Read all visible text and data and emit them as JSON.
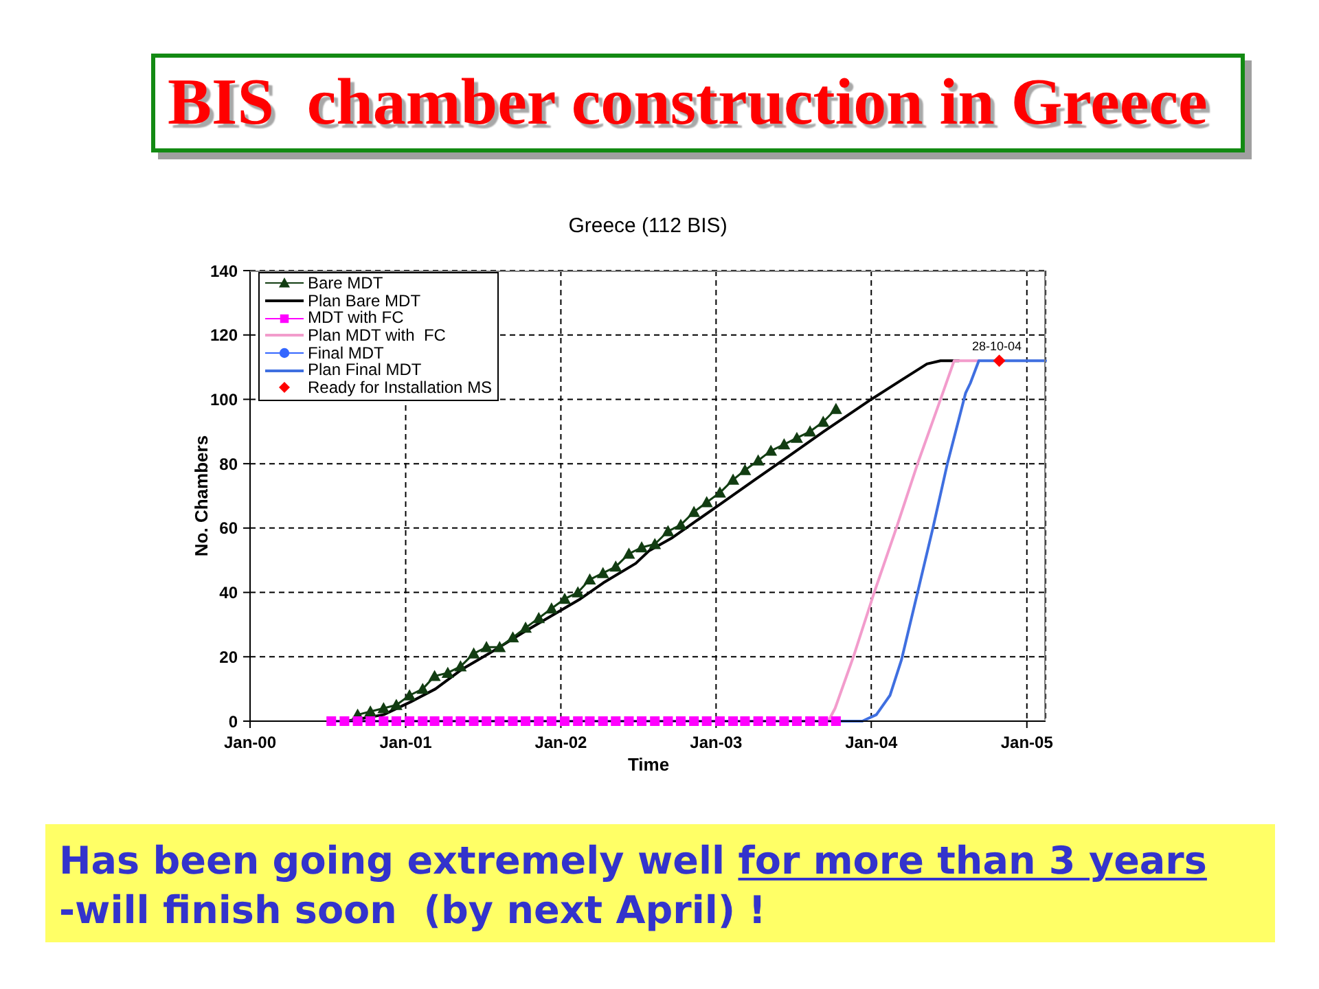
{
  "chart_data": {
    "type": "line",
    "title": "BIS  chamber construction in Greece",
    "subtitle": "Greece (112 BIS)",
    "xlabel": "Time",
    "ylabel": "No. Chambers",
    "x": [
      "2000-07-10",
      "2000-08-10",
      "2000-09-10",
      "2000-10-10",
      "2000-11-10",
      "2000-12-10",
      "2001-01-10",
      "2001-02-10",
      "2001-03-10",
      "2001-04-10",
      "2001-05-10",
      "2001-06-10",
      "2001-07-10",
      "2001-08-10",
      "2001-09-10",
      "2001-10-10",
      "2001-11-10",
      "2001-12-10",
      "2002-01-10",
      "2002-02-10",
      "2002-03-10",
      "2002-04-10",
      "2002-05-10",
      "2002-06-10",
      "2002-07-10",
      "2002-08-10",
      "2002-09-10",
      "2002-10-10",
      "2002-11-10",
      "2002-12-10",
      "2003-01-10",
      "2003-02-10",
      "2003-03-10",
      "2003-04-10",
      "2003-05-10",
      "2003-06-10",
      "2003-07-10",
      "2003-08-10",
      "2003-09-10",
      "2003-10-10"
    ],
    "series": [
      {
        "name": "Bare MDT",
        "marker": "triangle",
        "color": "#123d12",
        "values": [
          null,
          null,
          2,
          3,
          4,
          5,
          8,
          10,
          14,
          15,
          17,
          21,
          23,
          23,
          26,
          29,
          32,
          35,
          38,
          40,
          44,
          46,
          48,
          52,
          54,
          55,
          59,
          61,
          65,
          68,
          71,
          75,
          78,
          81,
          84,
          86,
          88,
          90,
          93,
          97
        ]
      },
      {
        "name": "Plan Bare MDT",
        "marker": "none",
        "color": "#000000",
        "x": [
          "2000-08-15",
          "2000-11-10",
          "2001-01-13",
          "2001-03-12",
          "2001-05-12",
          "2001-07-16",
          "2001-10-10",
          "2002-02-16",
          "2002-04-11",
          "2002-06-26",
          "2002-07-28",
          "2002-09-20",
          "2002-11-13",
          "2003-01-17",
          "2003-04-02",
          "2003-06-17",
          "2003-09-11",
          "2004-01-01",
          "2004-03-12",
          "2004-05-11",
          "2004-06-12",
          "2004-07-25"
        ],
        "values": [
          0,
          2,
          6,
          10,
          16,
          21,
          28,
          38,
          43,
          49,
          53,
          57,
          62,
          68,
          75,
          82,
          90,
          100,
          106,
          111,
          112,
          112
        ]
      },
      {
        "name": "MDT with FC",
        "marker": "square",
        "color": "#ff00ff",
        "values": [
          0,
          0,
          0,
          0,
          0,
          0,
          0,
          0,
          0,
          0,
          0,
          0,
          0,
          0,
          0,
          0,
          0,
          0,
          0,
          0,
          0,
          0,
          0,
          0,
          0,
          0,
          0,
          0,
          0,
          0,
          0,
          0,
          0,
          0,
          0,
          0,
          0,
          0,
          0,
          0
        ]
      },
      {
        "name": "Plan MDT with  FC",
        "marker": "none",
        "color": "#f29ccc",
        "x": [
          "2003-09-22",
          "2003-10-08",
          "2003-11-20",
          "2004-01-08",
          "2004-02-29",
          "2004-04-19",
          "2004-06-12",
          "2004-07-14",
          "2004-09-11"
        ],
        "values": [
          0,
          4,
          20,
          40,
          60,
          80,
          100,
          112,
          112
        ]
      },
      {
        "name": "Final MDT",
        "marker": "circle",
        "color": "#3366ff",
        "values": [
          null,
          null,
          null,
          null,
          null,
          null,
          null,
          null,
          null,
          null,
          null,
          null,
          null,
          null,
          null,
          null,
          null,
          null,
          null,
          null,
          null,
          null,
          null,
          null,
          null,
          null,
          null,
          null,
          null,
          null,
          null,
          null,
          null,
          null,
          null,
          null,
          null,
          null,
          null,
          null
        ]
      },
      {
        "name": "Plan Final MDT",
        "marker": "none",
        "color": "#3f6fe0",
        "x": [
          "2000-07-10",
          "2003-12-11",
          "2004-01-13",
          "2004-02-14",
          "2004-03-12",
          "2004-04-19",
          "2004-05-25",
          "2004-06-28",
          "2004-08-10",
          "2004-08-21",
          "2004-09-10",
          "2005-02-14"
        ],
        "values": [
          0,
          0,
          2,
          8,
          19,
          40,
          60,
          80,
          102,
          105,
          112,
          112
        ]
      },
      {
        "name": "Ready for Installation MS",
        "type": "scatter",
        "marker": "diamond",
        "color": "#ff0000",
        "x": [
          "2004-10-28"
        ],
        "values": [
          112
        ]
      }
    ],
    "xlim": [
      "2000-01-01",
      "2005-02-14"
    ],
    "xticks": [
      {
        "value": "2000-01-01",
        "label": "Jan-00"
      },
      {
        "value": "2001-01-01",
        "label": "Jan-01"
      },
      {
        "value": "2002-01-01",
        "label": "Jan-02"
      },
      {
        "value": "2003-01-01",
        "label": "Jan-03"
      },
      {
        "value": "2004-01-01",
        "label": "Jan-04"
      },
      {
        "value": "2005-01-01",
        "label": "Jan-05"
      }
    ],
    "ylim": [
      0,
      140
    ],
    "yticks": [
      0,
      20,
      40,
      60,
      80,
      100,
      120,
      140
    ],
    "grid": true,
    "legend": "top left",
    "line_style": "solid",
    "annotations": [
      "Has been going extremely well",
      "for more than 3 years",
      "-will finish soon  (by next April) !",
      {
        "text": "28-10-04",
        "x": "2004-10-28",
        "y": 112
      }
    ]
  }
}
